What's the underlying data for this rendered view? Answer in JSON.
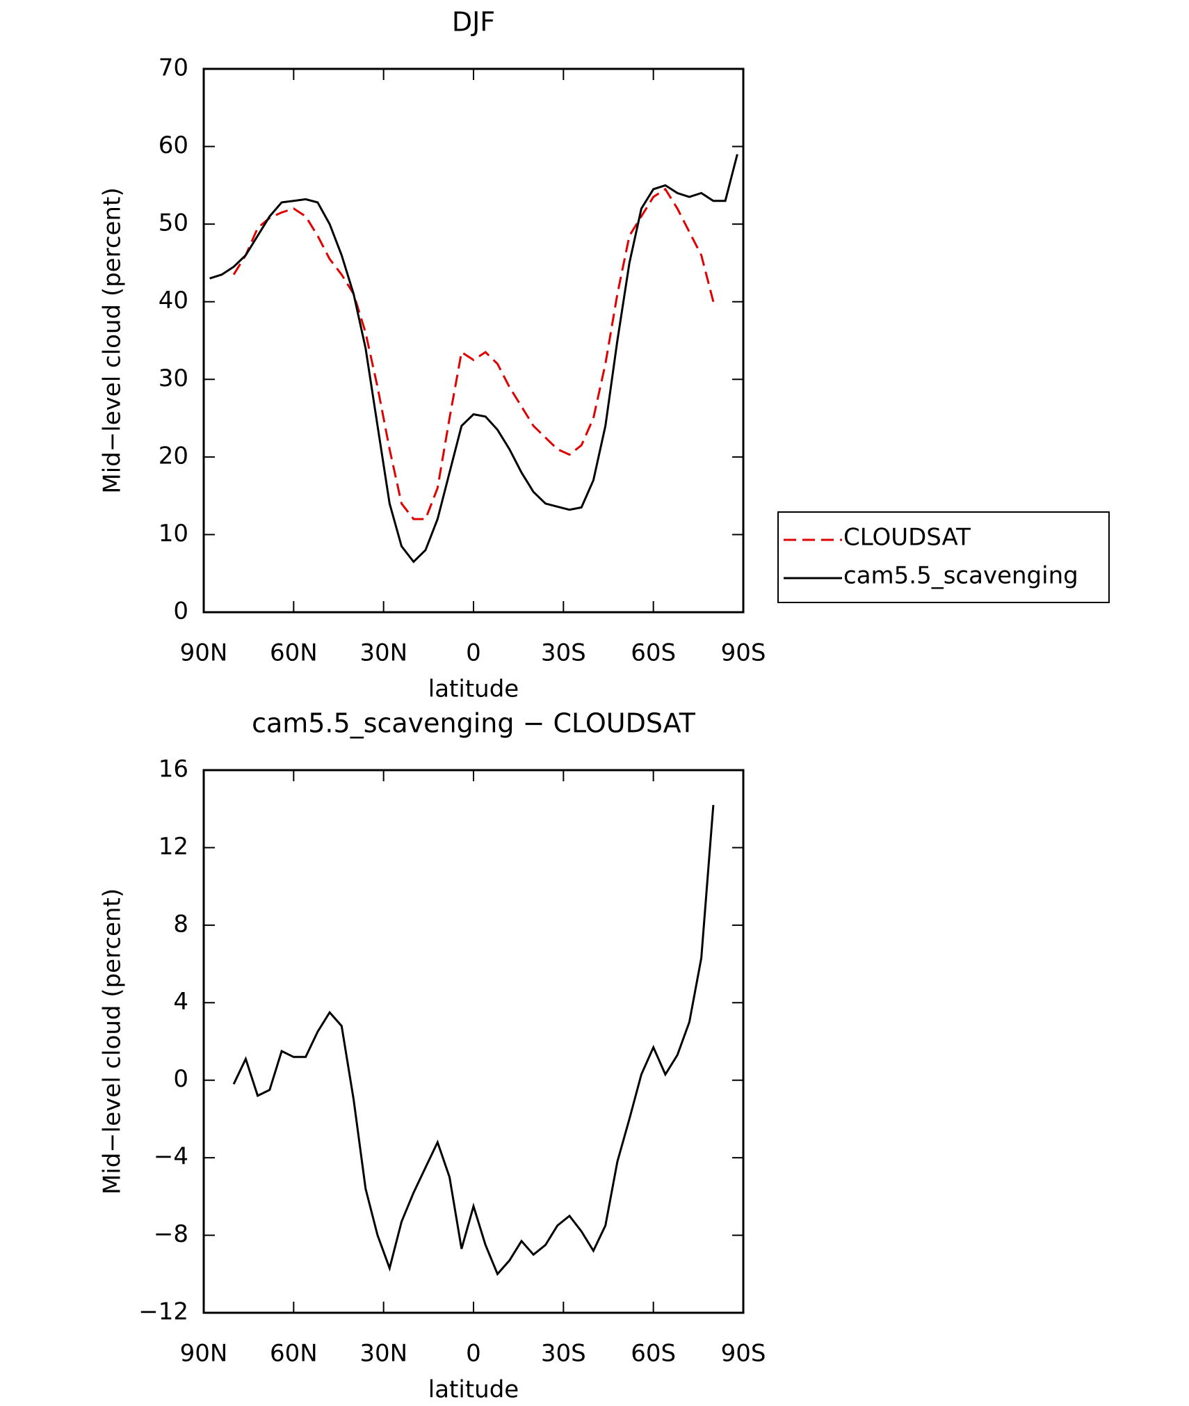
{
  "chart_data": [
    {
      "type": "line",
      "title": "DJF",
      "xlabel": "latitude",
      "ylabel": "Mid−level cloud (percent)",
      "x": [
        88,
        84,
        80,
        76,
        72,
        68,
        64,
        60,
        56,
        52,
        48,
        44,
        40,
        36,
        32,
        28,
        24,
        20,
        16,
        12,
        8,
        4,
        0,
        -4,
        -8,
        -12,
        -16,
        -20,
        -24,
        -28,
        -32,
        -36,
        -40,
        -44,
        -48,
        -52,
        -56,
        -60,
        -64,
        -68,
        -72,
        -76,
        -80,
        -84,
        -88
      ],
      "series": [
        {
          "name": "CLOUDSAT",
          "color": "#e00000",
          "line_style": "dashed",
          "values": [
            null,
            null,
            43.5,
            46,
            49.5,
            50.8,
            51.5,
            52,
            51,
            48.5,
            45.5,
            43.5,
            41,
            36,
            29,
            21,
            14,
            12,
            12,
            16,
            25,
            33.5,
            32.5,
            33.5,
            32,
            29,
            26.5,
            24,
            22.5,
            21,
            20.3,
            21.5,
            25,
            32,
            41,
            48.5,
            51,
            53.5,
            54.5,
            52,
            49,
            46,
            40,
            null,
            null
          ]
        },
        {
          "name": "cam5.5_scavenging",
          "color": "#000000",
          "line_style": "solid",
          "values": [
            43,
            43.5,
            44.5,
            46,
            48.5,
            51,
            52.8,
            53,
            53.2,
            52.8,
            50,
            46,
            41,
            34,
            24,
            14,
            8.5,
            6.5,
            8,
            12,
            18,
            24,
            25.5,
            25.2,
            23.5,
            21,
            18,
            15.5,
            14,
            13.6,
            13.2,
            13.5,
            17,
            24,
            35,
            45,
            52,
            54.5,
            55,
            54,
            53.5,
            54,
            53,
            53,
            59
          ]
        }
      ],
      "xlim": [
        90,
        -90
      ],
      "xticks": [
        {
          "value": 90,
          "label": "90N"
        },
        {
          "value": 60,
          "label": "60N"
        },
        {
          "value": 30,
          "label": "30N"
        },
        0,
        {
          "value": -30,
          "label": "30S"
        },
        {
          "value": -60,
          "label": "60S"
        },
        {
          "value": -90,
          "label": "90S"
        }
      ],
      "ylim": [
        0,
        70
      ],
      "yticks": [
        0,
        10,
        20,
        30,
        40,
        50,
        60,
        70
      ],
      "legend": "right"
    },
    {
      "type": "line",
      "title": "cam5.5_scavenging − CLOUDSAT",
      "xlabel": "latitude",
      "ylabel": "Mid−level cloud (percent)",
      "x": [
        88,
        84,
        80,
        76,
        72,
        68,
        64,
        60,
        56,
        52,
        48,
        44,
        40,
        36,
        32,
        28,
        24,
        20,
        16,
        12,
        8,
        4,
        0,
        -4,
        -8,
        -12,
        -16,
        -20,
        -24,
        -28,
        -32,
        -36,
        -40,
        -44,
        -48,
        -52,
        -56,
        -60,
        -64,
        -68,
        -72,
        -76,
        -80,
        -84,
        -88
      ],
      "color": "#000000",
      "values": [
        null,
        null,
        -0.2,
        1.1,
        -0.8,
        -0.5,
        1.5,
        1.2,
        1.2,
        2.5,
        3.5,
        2.8,
        -1,
        -5.6,
        -8,
        -9.7,
        -7.3,
        -5.8,
        -4.5,
        -3.2,
        -5,
        -8.7,
        -6.5,
        -8.5,
        -10,
        -9.3,
        -8.3,
        -9,
        -8.5,
        -7.5,
        -7,
        -7.8,
        -8.8,
        -7.5,
        -4.2,
        -2,
        0.3,
        1.7,
        0.3,
        1.3,
        3,
        6.3,
        14.2,
        null,
        null
      ],
      "xlim": [
        90,
        -90
      ],
      "xticks": [
        {
          "value": 90,
          "label": "90N"
        },
        {
          "value": 60,
          "label": "60N"
        },
        {
          "value": 30,
          "label": "30N"
        },
        0,
        {
          "value": -30,
          "label": "30S"
        },
        {
          "value": -60,
          "label": "60S"
        },
        {
          "value": -90,
          "label": "90S"
        }
      ],
      "ylim": [
        -12,
        16
      ],
      "yticks": [
        {
          "value": -12,
          "label": "−12"
        },
        {
          "value": -8,
          "label": "−8"
        },
        {
          "value": -4,
          "label": "−4"
        },
        0,
        4,
        8,
        12,
        16
      ]
    }
  ]
}
